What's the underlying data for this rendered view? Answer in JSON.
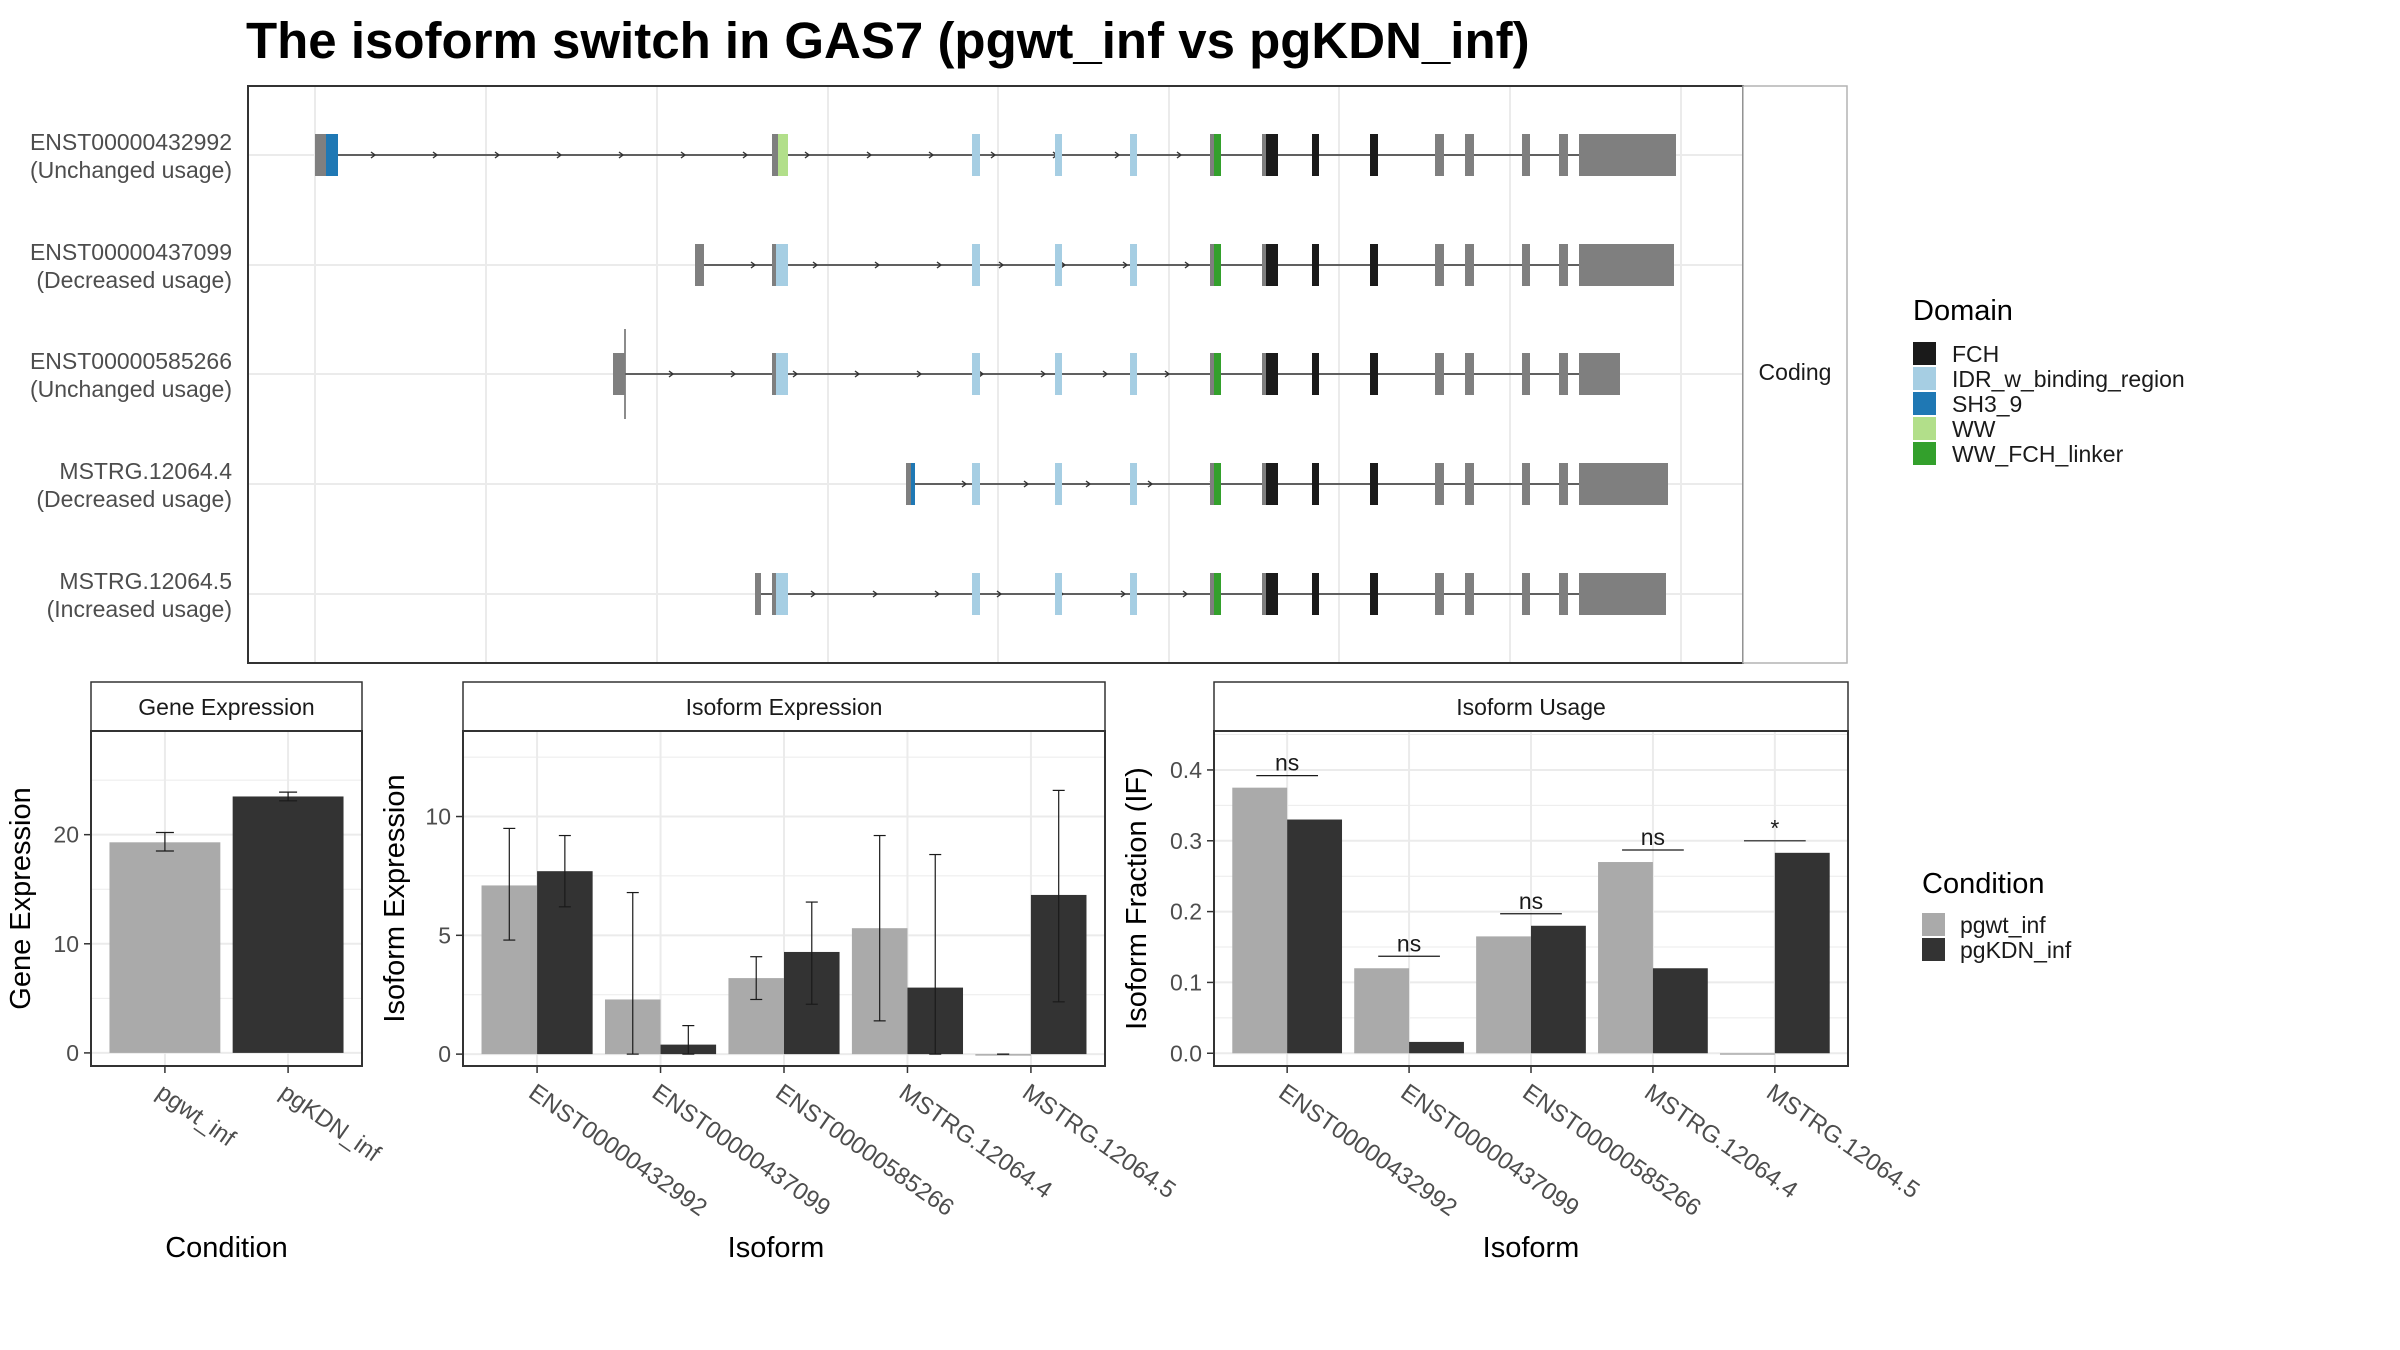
{
  "title": "The isoform switch in GAS7 (pgwt_inf vs pgKDN_inf)",
  "colors": {
    "pgwt_inf": "#aaaaaa",
    "pgKDN_inf": "#333333",
    "exon": "#7f7f7f",
    "intron": "#333333",
    "grid": "#ebebeb",
    "strip_bg": "#ffffff",
    "FCH": "#1a1a1a",
    "IDR_w_binding_region": "#a6cee3",
    "SH3_9": "#1f78b4",
    "WW": "#b2df8a",
    "WW_FCH_linker": "#33a02c"
  },
  "legends": {
    "domain": {
      "title": "Domain",
      "items": [
        {
          "label": "FCH",
          "color_key": "FCH"
        },
        {
          "label": "IDR_w_binding_region",
          "color_key": "IDR_w_binding_region"
        },
        {
          "label": "SH3_9",
          "color_key": "SH3_9"
        },
        {
          "label": "WW",
          "color_key": "WW"
        },
        {
          "label": "WW_FCH_linker",
          "color_key": "WW_FCH_linker"
        }
      ]
    },
    "condition": {
      "title": "Condition",
      "items": [
        {
          "label": "pgwt_inf",
          "color_key": "pgwt_inf"
        },
        {
          "label": "pgKDN_inf",
          "color_key": "pgKDN_inf"
        }
      ]
    }
  },
  "chart_data": [
    {
      "type": "gene-structure",
      "facet_label": "Coding",
      "tracks": [
        {
          "id": "ENST00000432992",
          "usage": "(Unchanged usage)"
        },
        {
          "id": "ENST00000437099",
          "usage": "(Decreased usage)"
        },
        {
          "id": "ENST00000585266",
          "usage": "(Unchanged usage)"
        },
        {
          "id": "MSTRG.12064.4",
          "usage": "(Decreased usage)"
        },
        {
          "id": "MSTRG.12064.5",
          "usage": "(Increased usage)"
        }
      ]
    },
    {
      "type": "bar",
      "title": "Gene Expression",
      "xlabel": "Condition",
      "ylabel": "Gene Expression",
      "categories": [
        "pgwt_inf",
        "pgKDN_inf"
      ],
      "values": [
        19.3,
        23.5
      ],
      "error_low": [
        18.5,
        23.1
      ],
      "error_high": [
        20.2,
        23.9
      ],
      "yticks": [
        0,
        10,
        20
      ],
      "ylim": [
        -1.2,
        29.5
      ]
    },
    {
      "type": "bar",
      "title": "Isoform Expression",
      "xlabel": "Isoform",
      "ylabel": "Isoform Expression",
      "categories": [
        "ENST00000432992",
        "ENST00000437099",
        "ENST00000585266",
        "MSTRG.12064.4",
        "MSTRG.12064.5"
      ],
      "series": [
        {
          "name": "pgwt_inf",
          "values": [
            7.1,
            2.3,
            3.2,
            5.3,
            0.0
          ],
          "error_low": [
            4.8,
            0.0,
            2.3,
            1.4,
            0.0
          ],
          "error_high": [
            9.5,
            6.8,
            4.1,
            9.2,
            0.0
          ]
        },
        {
          "name": "pgKDN_inf",
          "values": [
            7.7,
            0.4,
            4.3,
            2.8,
            6.7
          ],
          "error_low": [
            6.2,
            0.0,
            2.1,
            0.0,
            2.2
          ],
          "error_high": [
            9.2,
            1.2,
            6.4,
            8.4,
            11.1
          ]
        }
      ],
      "yticks": [
        0,
        5,
        10
      ],
      "ylim": [
        -0.5,
        13.6
      ]
    },
    {
      "type": "bar",
      "title": "Isoform Usage",
      "xlabel": "Isoform",
      "ylabel": "Isoform Fraction (IF)",
      "categories": [
        "ENST00000432992",
        "ENST00000437099",
        "ENST00000585266",
        "MSTRG.12064.4",
        "MSTRG.12064.5"
      ],
      "series": [
        {
          "name": "pgwt_inf",
          "values": [
            0.375,
            0.12,
            0.165,
            0.27,
            0.0
          ]
        },
        {
          "name": "pgKDN_inf",
          "values": [
            0.33,
            0.016,
            0.18,
            0.12,
            0.283
          ]
        }
      ],
      "significance": [
        "ns",
        "ns",
        "ns",
        "ns",
        "*"
      ],
      "yticks": [
        0.0,
        0.1,
        0.2,
        0.3,
        0.4
      ],
      "yticklabels": [
        "0.0",
        "0.1",
        "0.2",
        "0.3",
        "0.4"
      ],
      "ylim": [
        -0.018,
        0.455
      ]
    }
  ]
}
